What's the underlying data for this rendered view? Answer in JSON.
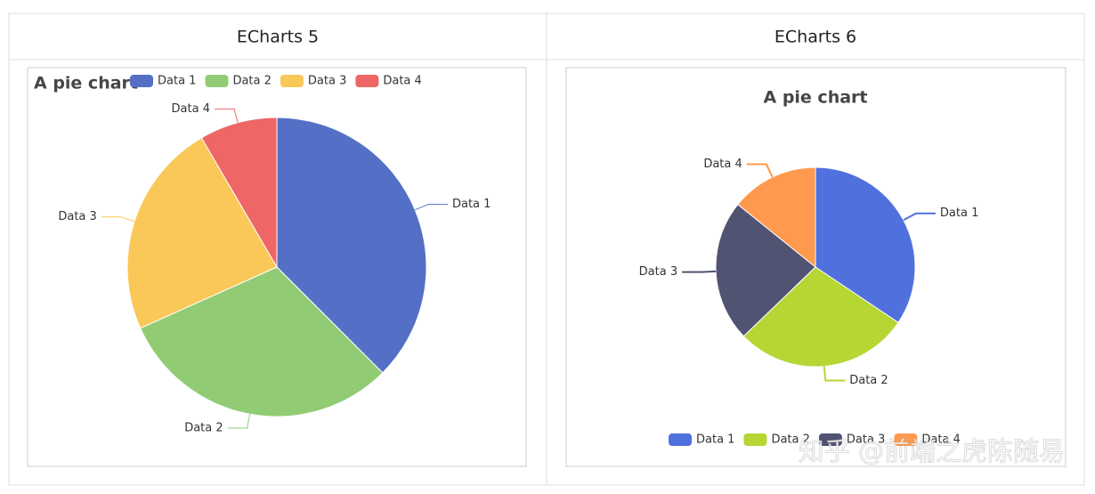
{
  "table": {
    "headers": [
      "ECharts 5",
      "ECharts 6"
    ]
  },
  "chart_data": [
    {
      "type": "pie",
      "title": "A pie chart",
      "categories": [
        "Data 1",
        "Data 2",
        "Data 3",
        "Data 4"
      ],
      "values": [
        37.5,
        30.8,
        23.3,
        8.4
      ],
      "colors": [
        "#5470c6",
        "#91cc75",
        "#fac858",
        "#ee6666"
      ],
      "legend": "top"
    },
    {
      "type": "pie",
      "title": "A pie chart",
      "categories": [
        "Data 1",
        "Data 2",
        "Data 3",
        "Data 4"
      ],
      "values": [
        34.4,
        28.4,
        23.0,
        14.2
      ],
      "colors": [
        "#5070dd",
        "#b6d634",
        "#505372",
        "#ff994d"
      ],
      "legend": "bottom"
    }
  ],
  "watermark": "知乎 @前端之虎陈随易"
}
